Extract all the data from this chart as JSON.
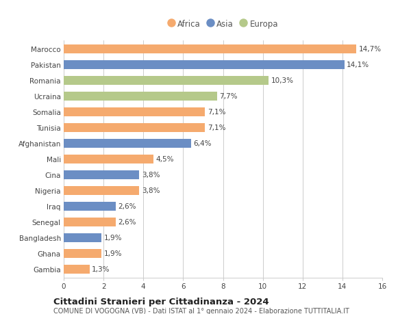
{
  "countries": [
    "Marocco",
    "Pakistan",
    "Romania",
    "Ucraina",
    "Somalia",
    "Tunisia",
    "Afghanistan",
    "Mali",
    "Cina",
    "Nigeria",
    "Iraq",
    "Senegal",
    "Bangladesh",
    "Ghana",
    "Gambia"
  ],
  "values": [
    14.7,
    14.1,
    10.3,
    7.7,
    7.1,
    7.1,
    6.4,
    4.5,
    3.8,
    3.8,
    2.6,
    2.6,
    1.9,
    1.9,
    1.3
  ],
  "labels": [
    "14,7%",
    "14,1%",
    "10,3%",
    "7,7%",
    "7,1%",
    "7,1%",
    "6,4%",
    "4,5%",
    "3,8%",
    "3,8%",
    "2,6%",
    "2,6%",
    "1,9%",
    "1,9%",
    "1,3%"
  ],
  "continents": [
    "Africa",
    "Asia",
    "Europa",
    "Europa",
    "Africa",
    "Africa",
    "Asia",
    "Africa",
    "Asia",
    "Africa",
    "Asia",
    "Africa",
    "Asia",
    "Africa",
    "Africa"
  ],
  "colors": {
    "Africa": "#F5AA6E",
    "Asia": "#6B8EC4",
    "Europa": "#B5C98A"
  },
  "xlim": [
    0,
    16
  ],
  "xticks": [
    0,
    2,
    4,
    6,
    8,
    10,
    12,
    14,
    16
  ],
  "title": "Cittadini Stranieri per Cittadinanza - 2024",
  "subtitle": "COMUNE DI VOGOGNA (VB) - Dati ISTAT al 1° gennaio 2024 - Elaborazione TUTTITALIA.IT",
  "background_color": "#ffffff",
  "grid_color": "#cccccc",
  "bar_height": 0.6,
  "label_fontsize": 7.5,
  "tick_fontsize": 7.5,
  "title_fontsize": 9.5,
  "subtitle_fontsize": 7.0
}
